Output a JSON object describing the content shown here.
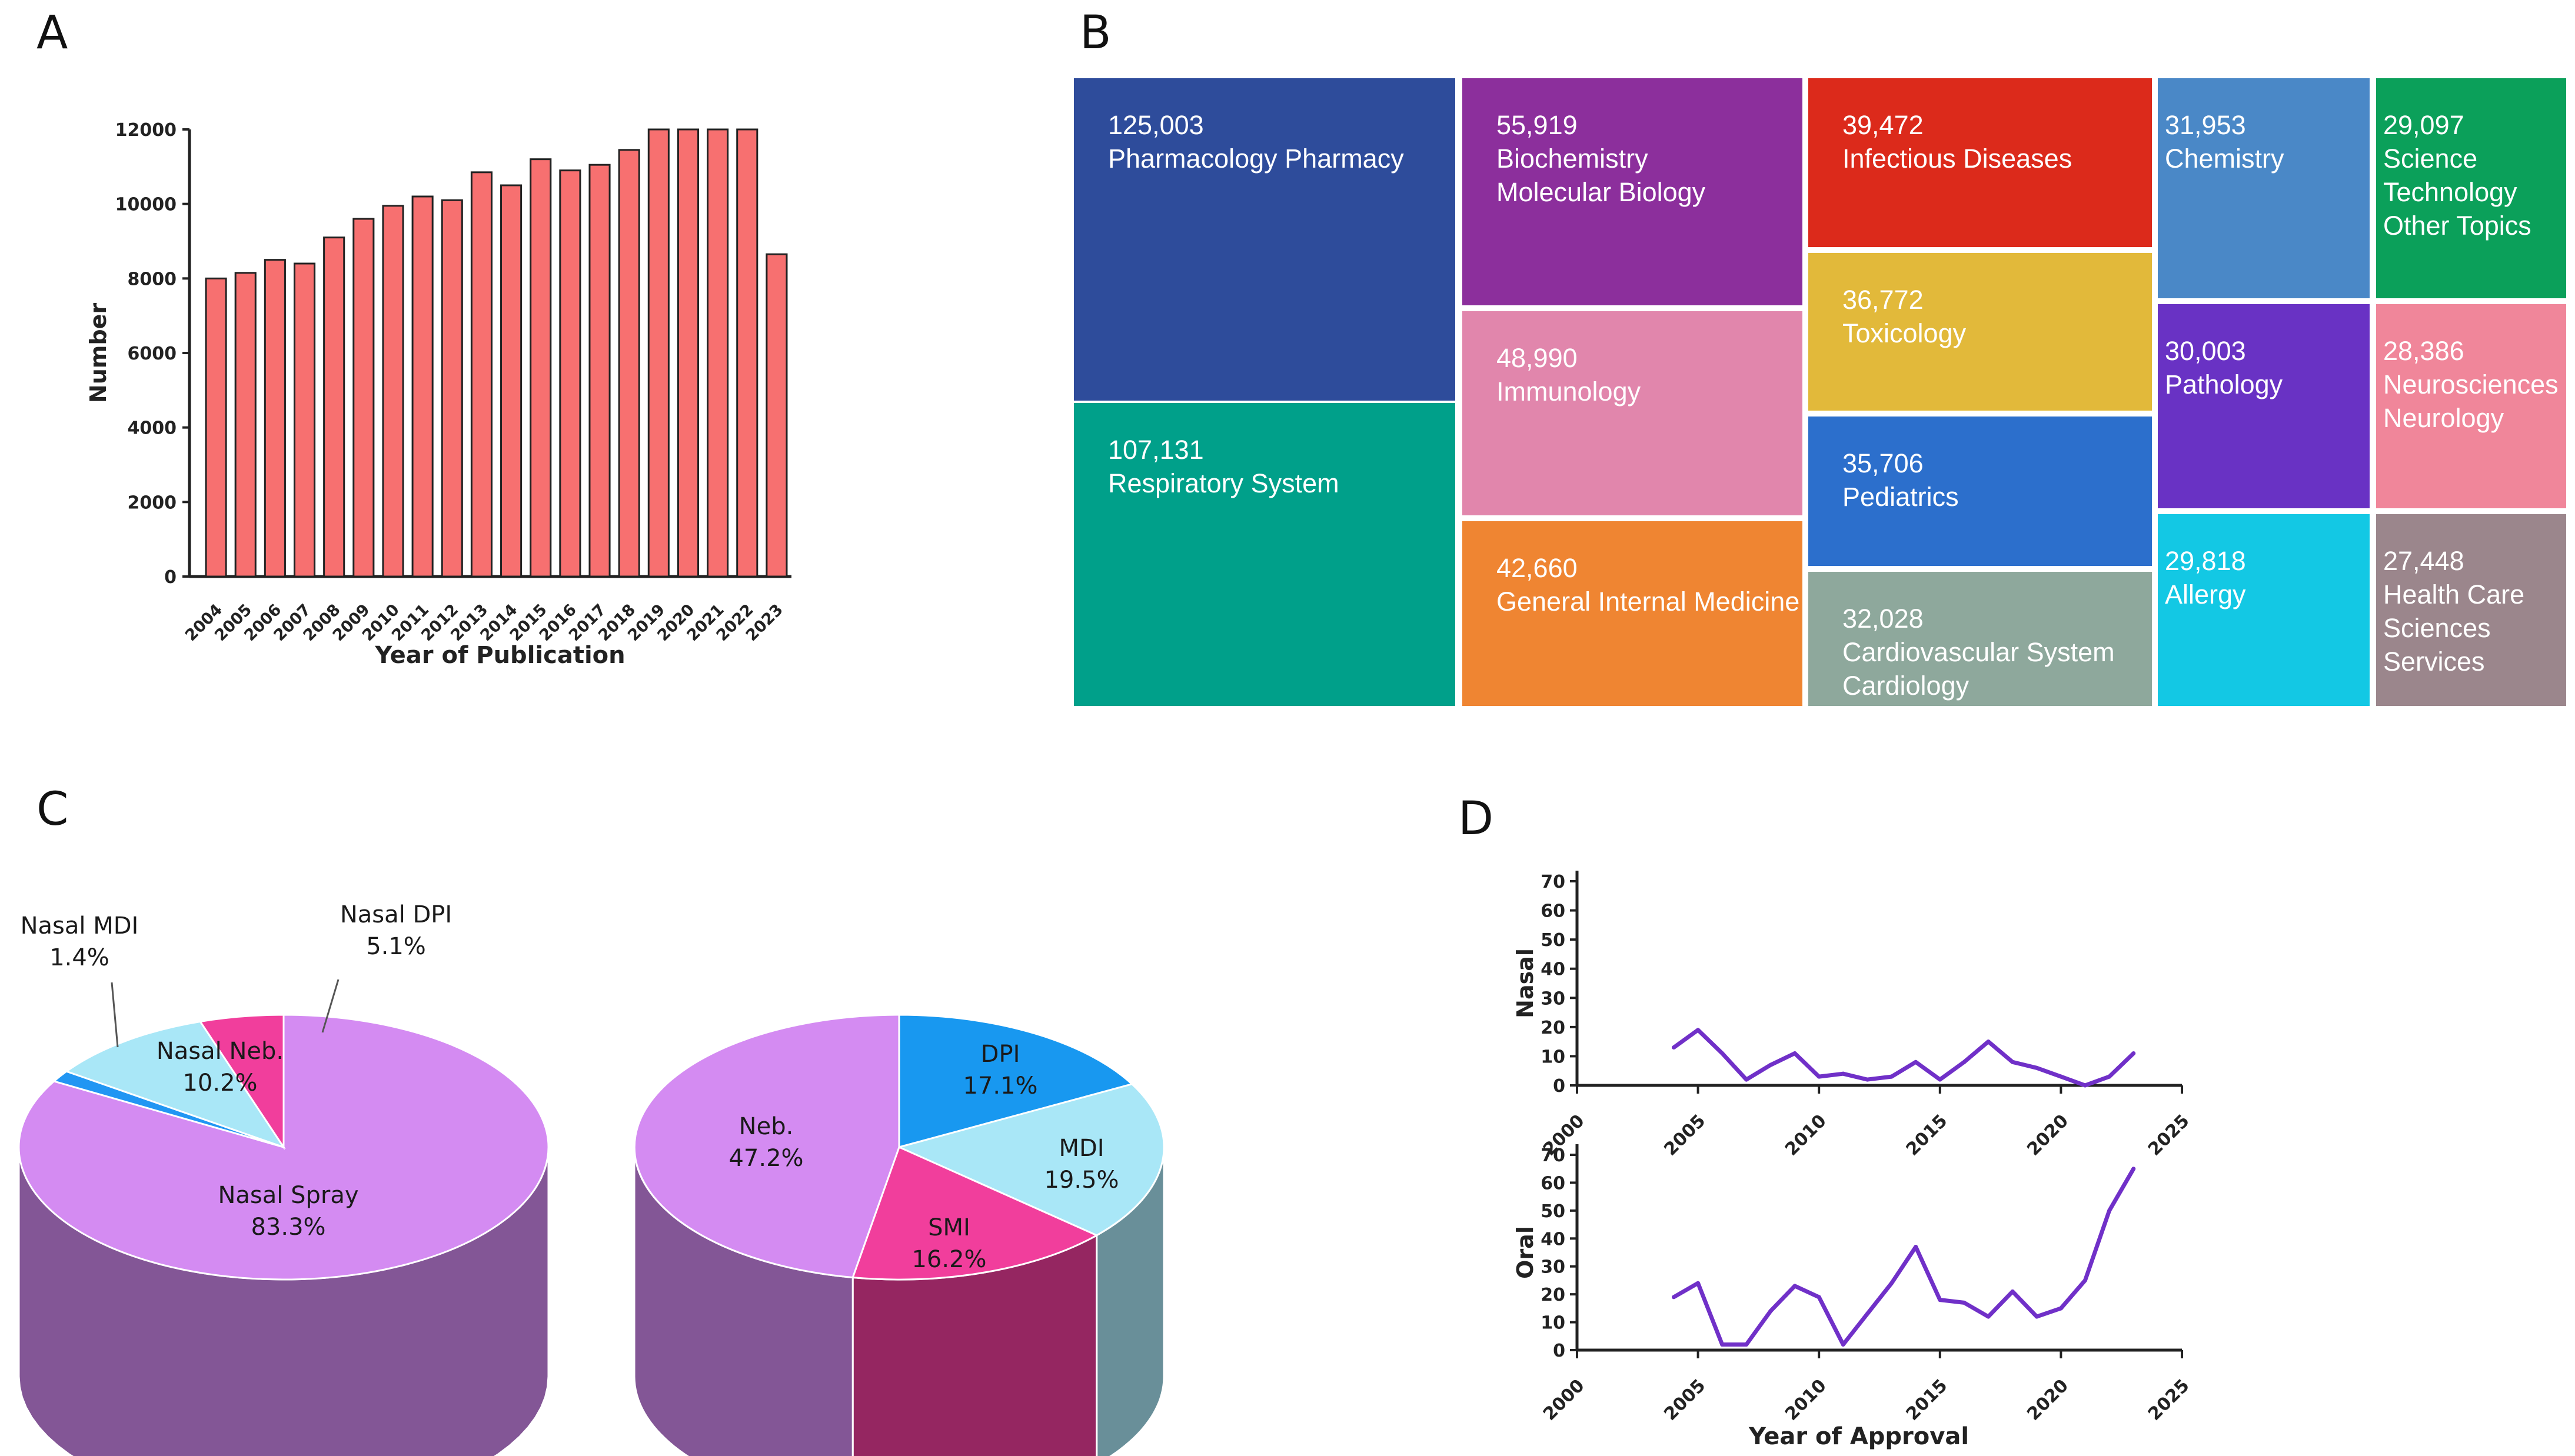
{
  "panels": {
    "A": {
      "label": "A"
    },
    "B": {
      "label": "B"
    },
    "C": {
      "label": "C"
    },
    "D": {
      "label": "D"
    }
  },
  "chart_data": [
    {
      "panel": "A",
      "type": "bar",
      "title": "",
      "xlabel": "Year of Publication",
      "ylabel": "Number",
      "categories": [
        "2004",
        "2005",
        "2006",
        "2007",
        "2008",
        "2009",
        "2010",
        "2011",
        "2012",
        "2013",
        "2014",
        "2015",
        "2016",
        "2017",
        "2018",
        "2019",
        "2020",
        "2021",
        "2022",
        "2023"
      ],
      "values": [
        8000,
        8150,
        8500,
        8400,
        9100,
        9600,
        9950,
        10200,
        10100,
        10850,
        10500,
        11200,
        10900,
        11050,
        11450,
        12000,
        12000,
        12000,
        12000,
        8650
      ],
      "ylim": [
        0,
        12000
      ],
      "yticks": [
        "0",
        "2000",
        "4000",
        "6000",
        "8000",
        "10000",
        "12000"
      ],
      "bar_color": "#f77070",
      "grid": false
    },
    {
      "panel": "B",
      "type": "treemap",
      "items": [
        {
          "value": "125,003",
          "label": [
            "Pharmacology Pharmacy"
          ],
          "color": "#2e4c9b"
        },
        {
          "value": "107,131",
          "label": [
            "Respiratory System"
          ],
          "color": "#00a08a"
        },
        {
          "value": "55,919",
          "label": [
            "Biochemistry",
            "Molecular Biology"
          ],
          "color": "#8c2f9c"
        },
        {
          "value": "48,990",
          "label": [
            "Immunology"
          ],
          "color": "#e186ac"
        },
        {
          "value": "42,660",
          "label": [
            "General Internal Medicine"
          ],
          "color": "#ef8532"
        },
        {
          "value": "39,472",
          "label": [
            "Infectious Diseases"
          ],
          "color": "#dc2a1b"
        },
        {
          "value": "36,772",
          "label": [
            "Toxicology"
          ],
          "color": "#e2b93a"
        },
        {
          "value": "35,706",
          "label": [
            "Pediatrics"
          ],
          "color": "#2c6fcc"
        },
        {
          "value": "32,028",
          "label": [
            "Cardiovascular System",
            "Cardiology"
          ],
          "color": "#8ea89c"
        },
        {
          "value": "31,953",
          "label": [
            "Chemistry"
          ],
          "color": "#4a88c7"
        },
        {
          "value": "30,003",
          "label": [
            "Pathology"
          ],
          "color": "#6932c4"
        },
        {
          "value": "29,818",
          "label": [
            "Allergy"
          ],
          "color": "#13c8e4"
        },
        {
          "value": "29,097",
          "label": [
            "Science",
            "Technology",
            "Other Topics"
          ],
          "color": "#0ba05a"
        },
        {
          "value": "28,386",
          "label": [
            "Neurosciences",
            "Neurology"
          ],
          "color": "#f0869a"
        },
        {
          "value": "27,448",
          "label": [
            "Health Care",
            "Sciences",
            "Services"
          ],
          "color": "#9b868c"
        }
      ]
    },
    {
      "panel": "C-left",
      "type": "pie",
      "slices": [
        {
          "name": "Nasal Spray",
          "pct": "83.3%",
          "value": 83.3,
          "color": "#d48bf2"
        },
        {
          "name": "Nasal MDI",
          "pct": "1.4%",
          "value": 1.4,
          "color": "#2196f3"
        },
        {
          "name": "Nasal Neb.",
          "pct": "10.2%",
          "value": 10.2,
          "color": "#a9e7f7"
        },
        {
          "name": "Nasal DPI",
          "pct": "5.1%",
          "value": 5.1,
          "color": "#f13e9c"
        }
      ]
    },
    {
      "panel": "C-right",
      "type": "pie",
      "slices": [
        {
          "name": "DPI",
          "pct": "17.1%",
          "value": 17.1,
          "color": "#1898f0"
        },
        {
          "name": "MDI",
          "pct": "19.5%",
          "value": 19.5,
          "color": "#a9e7f7"
        },
        {
          "name": "SMI",
          "pct": "16.2%",
          "value": 16.2,
          "color": "#f13e9c"
        },
        {
          "name": "Neb.",
          "pct": "47.2%",
          "value": 47.2,
          "color": "#d48bf2"
        }
      ]
    },
    {
      "panel": "D-top",
      "type": "line",
      "ylabel": "Nasal",
      "xlabel": "",
      "xlim": [
        2000,
        2025
      ],
      "ylim": [
        0,
        70
      ],
      "xticks": [
        "2000",
        "2005",
        "2010",
        "2015",
        "2020",
        "2025"
      ],
      "yticks": [
        "0",
        "10",
        "20",
        "30",
        "40",
        "50",
        "60",
        "70"
      ],
      "x": [
        2004,
        2005,
        2006,
        2007,
        2008,
        2009,
        2010,
        2011,
        2012,
        2013,
        2014,
        2015,
        2016,
        2017,
        2018,
        2019,
        2020,
        2021,
        2022,
        2023
      ],
      "y": [
        13,
        19,
        11,
        2,
        7,
        11,
        3,
        4,
        2,
        3,
        8,
        2,
        8,
        15,
        8,
        6,
        3,
        0,
        3,
        11
      ],
      "color": "#7030c8"
    },
    {
      "panel": "D-bottom",
      "type": "line",
      "ylabel": "Oral",
      "xlabel": "Year of Approval",
      "xlim": [
        2000,
        2025
      ],
      "ylim": [
        0,
        70
      ],
      "xticks": [
        "2000",
        "2005",
        "2010",
        "2015",
        "2020",
        "2025"
      ],
      "yticks": [
        "0",
        "10",
        "20",
        "30",
        "40",
        "50",
        "60",
        "70"
      ],
      "x": [
        2004,
        2005,
        2006,
        2007,
        2008,
        2009,
        2010,
        2011,
        2012,
        2013,
        2014,
        2015,
        2016,
        2017,
        2018,
        2019,
        2020,
        2021,
        2022,
        2023
      ],
      "y": [
        19,
        24,
        2,
        2,
        14,
        23,
        19,
        2,
        13,
        24,
        37,
        18,
        17,
        12,
        21,
        12,
        15,
        25,
        50,
        65
      ],
      "color": "#7030c8"
    }
  ]
}
